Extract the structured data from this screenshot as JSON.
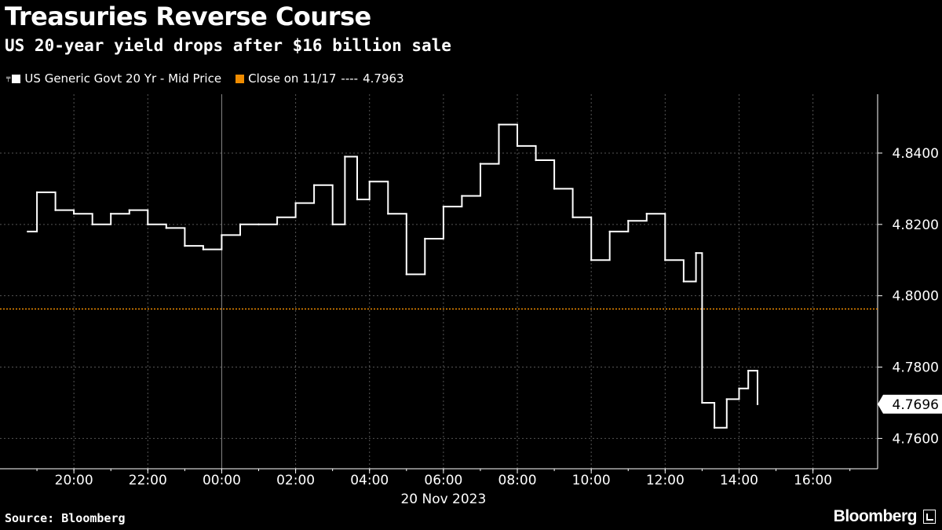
{
  "header": {
    "title": "Treasuries Reverse Course",
    "subtitle": "US 20-year yield drops after $16 billion sale"
  },
  "footer": {
    "source": "Source: Bloomberg",
    "brand": "Bloomberg"
  },
  "colors": {
    "background": "#000000",
    "series": "#ffffff",
    "reference": "#f08c00",
    "grid": "#555555"
  },
  "chart_data": {
    "type": "line",
    "legend_position": "top-left",
    "grid": true,
    "series": [
      {
        "name": "US Generic Govt 20 Yr - Mid Price",
        "color": "#ffffff",
        "x": [
          "2023-11-19 18:45",
          "2023-11-19 19:00",
          "2023-11-19 19:30",
          "2023-11-19 20:00",
          "2023-11-19 20:30",
          "2023-11-19 21:00",
          "2023-11-19 21:30",
          "2023-11-19 22:00",
          "2023-11-19 22:30",
          "2023-11-19 23:00",
          "2023-11-19 23:30",
          "2023-11-20 00:00",
          "2023-11-20 00:30",
          "2023-11-20 01:00",
          "2023-11-20 01:30",
          "2023-11-20 02:00",
          "2023-11-20 02:30",
          "2023-11-20 03:00",
          "2023-11-20 03:20",
          "2023-11-20 03:40",
          "2023-11-20 04:00",
          "2023-11-20 04:30",
          "2023-11-20 05:00",
          "2023-11-20 05:30",
          "2023-11-20 06:00",
          "2023-11-20 06:30",
          "2023-11-20 07:00",
          "2023-11-20 07:30",
          "2023-11-20 08:00",
          "2023-11-20 08:30",
          "2023-11-20 09:00",
          "2023-11-20 09:30",
          "2023-11-20 10:00",
          "2023-11-20 10:30",
          "2023-11-20 11:00",
          "2023-11-20 11:30",
          "2023-11-20 12:00",
          "2023-11-20 12:30",
          "2023-11-20 12:50",
          "2023-11-20 13:00",
          "2023-11-20 13:20",
          "2023-11-20 13:40",
          "2023-11-20 14:00",
          "2023-11-20 14:15",
          "2023-11-20 14:30"
        ],
        "y": [
          4.818,
          4.829,
          4.824,
          4.823,
          4.82,
          4.823,
          4.824,
          4.82,
          4.819,
          4.814,
          4.813,
          4.817,
          4.82,
          4.82,
          4.822,
          4.826,
          4.831,
          4.82,
          4.839,
          4.827,
          4.832,
          4.823,
          4.806,
          4.816,
          4.825,
          4.828,
          4.837,
          4.848,
          4.842,
          4.838,
          4.83,
          4.822,
          4.81,
          4.818,
          4.821,
          4.823,
          4.81,
          4.804,
          4.812,
          4.77,
          4.763,
          4.771,
          4.774,
          4.779,
          4.7696
        ]
      }
    ],
    "reference_line": {
      "label": "Close on 11/17",
      "separator": "----",
      "value": 4.7963,
      "value_label": "4.7963"
    },
    "last_value_label": "4.7696",
    "x_range": [
      "2023-11-19 18:00",
      "2023-11-20 17:45"
    ],
    "x_tick_values": [
      "2023-11-19 20:00",
      "2023-11-19 22:00",
      "2023-11-20 00:00",
      "2023-11-20 02:00",
      "2023-11-20 04:00",
      "2023-11-20 06:00",
      "2023-11-20 08:00",
      "2023-11-20 10:00",
      "2023-11-20 12:00",
      "2023-11-20 14:00",
      "2023-11-20 16:00"
    ],
    "x_tick_labels": [
      "20:00",
      "22:00",
      "00:00",
      "02:00",
      "04:00",
      "06:00",
      "08:00",
      "10:00",
      "12:00",
      "14:00",
      "16:00"
    ],
    "x_date_label": "20 Nov 2023",
    "y_range": [
      4.7515,
      4.8565
    ],
    "y_ticks": [
      4.76,
      4.78,
      4.8,
      4.82,
      4.84
    ],
    "y_tick_labels": [
      "4.7600",
      "4.7800",
      "4.8000",
      "4.8200",
      "4.8400"
    ]
  }
}
